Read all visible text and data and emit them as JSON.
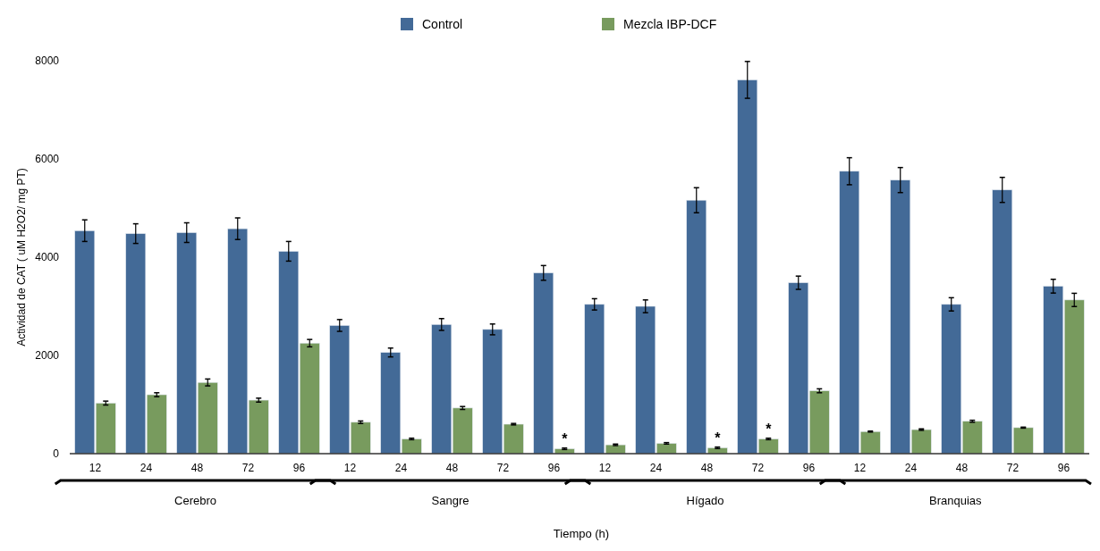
{
  "chart_data": {
    "type": "bar",
    "xlabel": "Tiempo (h)",
    "ylabel": "Actividad de CAT ( uM H2O2/ mg PT)",
    "categories": [
      "12",
      "24",
      "48",
      "72",
      "96",
      "12",
      "24",
      "48",
      "72",
      "96",
      "12",
      "24",
      "48",
      "72",
      "96",
      "12",
      "24",
      "48",
      "72",
      "96"
    ],
    "series": [
      {
        "name": "Control",
        "color": "#436a97",
        "values": [
          4540,
          4480,
          4500,
          4580,
          4120,
          2610,
          2060,
          2630,
          2530,
          3680,
          3040,
          3000,
          5160,
          7610,
          3480,
          5750,
          5570,
          3040,
          5370,
          3410
        ],
        "errors": [
          220,
          200,
          200,
          220,
          200,
          120,
          90,
          120,
          110,
          150,
          115,
          130,
          255,
          375,
          135,
          275,
          255,
          135,
          255,
          140
        ]
      },
      {
        "name": "Mezcla IBP-DCF",
        "color": "#789b5e",
        "values": [
          1030,
          1200,
          1450,
          1090,
          2250,
          640,
          300,
          930,
          600,
          100,
          180,
          210,
          120,
          300,
          1280,
          450,
          490,
          660,
          530,
          3130
        ],
        "errors": [
          40,
          40,
          70,
          40,
          75,
          25,
          15,
          30,
          15,
          15,
          15,
          15,
          15,
          15,
          40,
          10,
          15,
          20,
          10,
          135
        ],
        "value_labels": [
          null,
          null,
          null,
          null,
          null,
          null,
          null,
          null,
          null,
          "*",
          null,
          null,
          "*",
          "*",
          null,
          null,
          null,
          null,
          null,
          null
        ]
      }
    ],
    "ylim": [
      0,
      8000
    ],
    "yticks": [
      0,
      2000,
      4000,
      6000,
      8000
    ],
    "grid": false,
    "legend": "top",
    "annotations": [
      "Cerebro",
      "Sangre",
      "Hígado",
      "Branquias"
    ]
  }
}
